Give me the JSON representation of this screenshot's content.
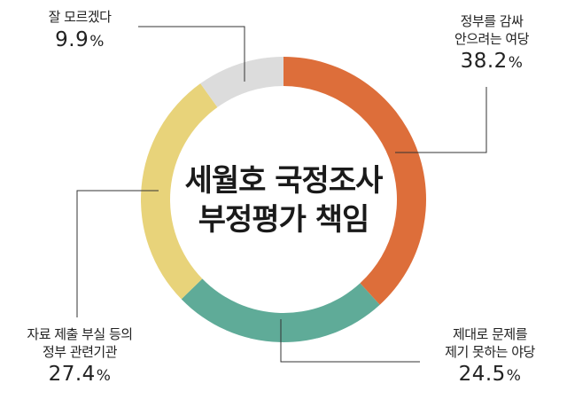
{
  "chart_data": {
    "type": "pie",
    "title": [
      "세월호 국정조사",
      "부정평가 책임"
    ],
    "slices": [
      {
        "label": [
          "정부를 감싸",
          "안으려는 여당"
        ],
        "value": 38.2,
        "value_text": "38.2",
        "color": "#dd6e3a"
      },
      {
        "label": [
          "제대로 문제를",
          "제기 못하는 야당"
        ],
        "value": 24.5,
        "value_text": "24.5",
        "color": "#5fab98"
      },
      {
        "label": [
          "자료 제출 부실 등의",
          "정부 관련기관"
        ],
        "value": 27.4,
        "value_text": "27.4",
        "color": "#e8d37a"
      },
      {
        "label": [
          "잘 모르겠다"
        ],
        "value": 9.9,
        "value_text": "9.9",
        "color": "#dcdcdc"
      }
    ],
    "unit": "%"
  }
}
